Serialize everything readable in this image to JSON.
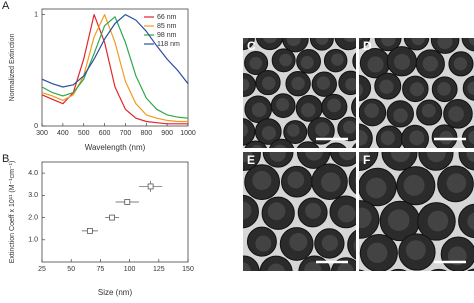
{
  "chart_data": [
    {
      "type": "line",
      "label": "A",
      "x_label": "Wavelength (nm)",
      "y_label": "Normalized Extinction",
      "x": [
        300,
        350,
        400,
        450,
        500,
        550,
        600,
        650,
        700,
        750,
        800,
        850,
        900,
        950,
        1000
      ],
      "series": [
        {
          "name": "66 nm",
          "color": "#e0262b",
          "values": [
            0.28,
            0.24,
            0.2,
            0.3,
            0.6,
            1.0,
            0.75,
            0.35,
            0.15,
            0.07,
            0.04,
            0.03,
            0.02,
            0.02,
            0.02
          ]
        },
        {
          "name": "85 nm",
          "color": "#f39a1e",
          "values": [
            0.3,
            0.27,
            0.23,
            0.28,
            0.45,
            0.8,
            1.0,
            0.75,
            0.4,
            0.2,
            0.1,
            0.07,
            0.05,
            0.04,
            0.04
          ]
        },
        {
          "name": "98 nm",
          "color": "#2fa84a",
          "values": [
            0.35,
            0.3,
            0.27,
            0.3,
            0.42,
            0.65,
            0.9,
            0.98,
            0.75,
            0.45,
            0.25,
            0.15,
            0.1,
            0.08,
            0.07
          ]
        },
        {
          "name": "118 nm",
          "color": "#2a4fa3",
          "values": [
            0.42,
            0.38,
            0.35,
            0.37,
            0.45,
            0.6,
            0.78,
            0.92,
            1.0,
            0.95,
            0.85,
            0.72,
            0.6,
            0.5,
            0.38
          ]
        }
      ],
      "xlim": [
        300,
        1000
      ],
      "xticks": [
        300,
        400,
        500,
        600,
        700,
        800,
        900,
        1000
      ],
      "ylim": [
        0,
        1.05
      ],
      "yticks": [
        0,
        1
      ],
      "legend": "top-right"
    },
    {
      "type": "scatter",
      "label": "B",
      "x_label": "Size (nm)",
      "y_label": "Extinction Coeff x 10¹¹ (M⁻¹cm⁻¹)",
      "x": [
        66,
        85,
        98,
        118
      ],
      "values": [
        1.4,
        2.0,
        2.7,
        3.4
      ],
      "x_errors": [
        7,
        6,
        10,
        10
      ],
      "y_errors": [
        0.08,
        0.08,
        0.08,
        0.25
      ],
      "color": "#555555",
      "xlim": [
        25,
        150
      ],
      "xticks": [
        25,
        50,
        75,
        100,
        125,
        150
      ],
      "ylim": [
        0,
        4.5
      ],
      "yticks": [
        {
          "value": 1,
          "label": "1.0"
        },
        {
          "value": 2,
          "label": "2.0"
        },
        {
          "value": 3,
          "label": "3.0"
        },
        {
          "value": 4,
          "label": "4.0"
        }
      ]
    }
  ],
  "images": [
    {
      "label": "C"
    },
    {
      "label": "D"
    },
    {
      "label": "E"
    },
    {
      "label": "F"
    }
  ]
}
